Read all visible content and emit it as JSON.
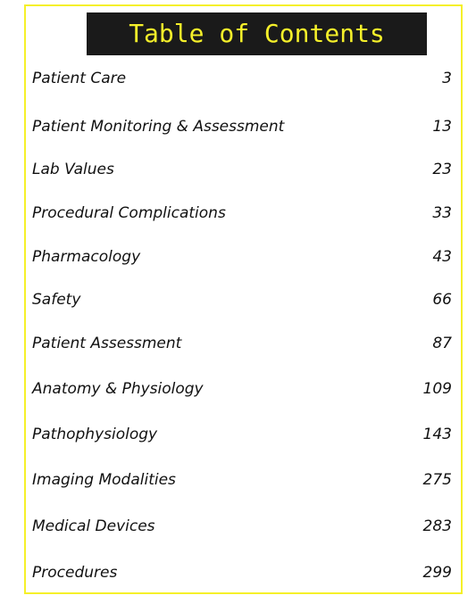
{
  "header": {
    "title": "Table of Contents"
  },
  "entries": [
    {
      "label": "Patient Care",
      "page": 3
    },
    {
      "label": "Patient Monitoring & Assessment",
      "page": 13
    },
    {
      "label": "Lab Values",
      "page": 23
    },
    {
      "label": "Procedural Complications",
      "page": 33
    },
    {
      "label": "Pharmacology",
      "page": 43
    },
    {
      "label": "Safety",
      "page": 66
    },
    {
      "label": "Patient Assessment",
      "page": 87
    },
    {
      "label": "Anatomy & Physiology",
      "page": 109
    },
    {
      "label": "Pathophysiology",
      "page": 143
    },
    {
      "label": "Imaging Modalities",
      "page": 275
    },
    {
      "label": "Medical Devices",
      "page": 283
    },
    {
      "label": "Procedures",
      "page": 299
    }
  ]
}
